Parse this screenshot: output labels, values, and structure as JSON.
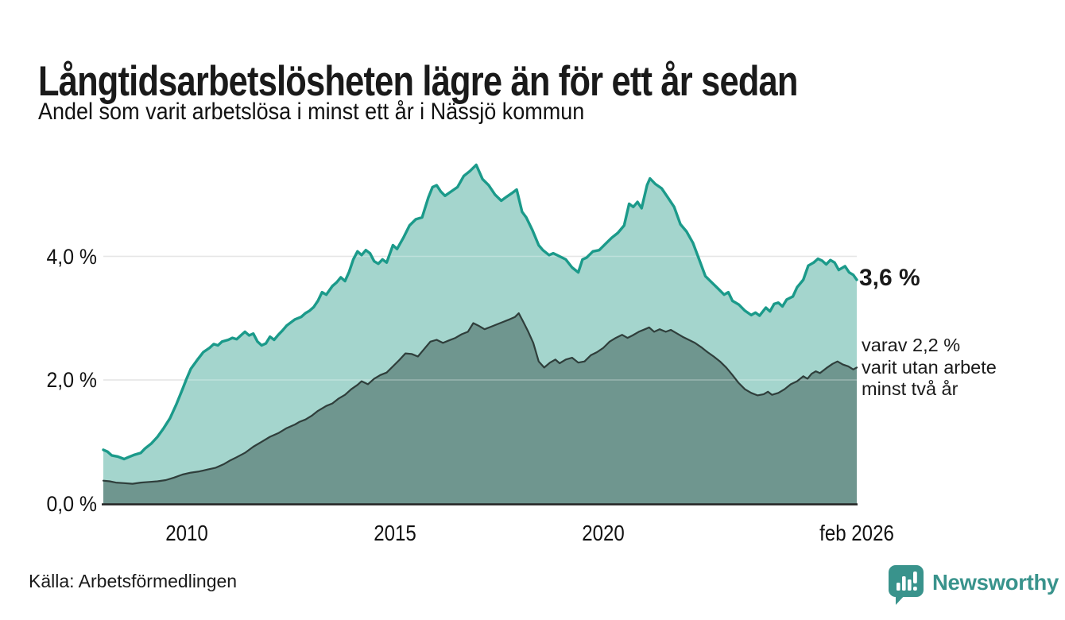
{
  "header": {
    "title": "Långtidsarbetslösheten lägre än för ett år sedan",
    "subtitle": "Andel som varit arbetslösa i minst ett år i Nässjö kommun"
  },
  "footer": {
    "source": "Källa: Arbetsförmedlingen",
    "brand_name": "Newsworthy"
  },
  "chart_data": {
    "type": "area",
    "title": "Långtidsarbetslösheten lägre än för ett år sedan",
    "subtitle": "Andel som varit arbetslösa i minst ett år i Nässjö kommun",
    "unit": "%",
    "x_range": [
      2008.0,
      2026.083
    ],
    "ylim": [
      0,
      5.7
    ],
    "grid": "horizontal",
    "legend_position": "none",
    "x_ticks": [
      {
        "label": "2010",
        "year": 2010
      },
      {
        "label": "2015",
        "year": 2015
      },
      {
        "label": "2020",
        "year": 2020
      },
      {
        "label": "feb 2026",
        "year": 2026.083
      }
    ],
    "y_ticks": [
      {
        "label": "0,0 %",
        "value": 0
      },
      {
        "label": "2,0 %",
        "value": 2
      },
      {
        "label": "4,0 %",
        "value": 4
      }
    ],
    "colors": {
      "line_1yr": "#1b9a8a",
      "fill_1yr": "#a4d5cd",
      "line_2yr": "#2f3e3b",
      "fill_2yr": "#6f968f",
      "gridline": "#dcdcdc",
      "baseline": "#222222",
      "brand_teal": "#39938c"
    },
    "annotations": {
      "end_value_label": "3,6 %",
      "sub_lines": [
        "varav 2,2 %",
        "varit utan arbete",
        "minst två år"
      ]
    },
    "series": [
      {
        "name": "Andel arbetslösa minst ett år",
        "end_value": 3.6,
        "points": [
          [
            2008.0,
            0.87
          ],
          [
            2008.1,
            0.84
          ],
          [
            2008.2,
            0.78
          ],
          [
            2008.35,
            0.76
          ],
          [
            2008.5,
            0.72
          ],
          [
            2008.6,
            0.75
          ],
          [
            2008.75,
            0.79
          ],
          [
            2008.9,
            0.82
          ],
          [
            2009.0,
            0.89
          ],
          [
            2009.15,
            0.97
          ],
          [
            2009.3,
            1.08
          ],
          [
            2009.45,
            1.22
          ],
          [
            2009.6,
            1.38
          ],
          [
            2009.75,
            1.6
          ],
          [
            2009.9,
            1.85
          ],
          [
            2010.0,
            2.02
          ],
          [
            2010.1,
            2.18
          ],
          [
            2010.25,
            2.32
          ],
          [
            2010.4,
            2.45
          ],
          [
            2010.55,
            2.52
          ],
          [
            2010.65,
            2.58
          ],
          [
            2010.75,
            2.56
          ],
          [
            2010.85,
            2.62
          ],
          [
            2011.0,
            2.65
          ],
          [
            2011.1,
            2.68
          ],
          [
            2011.2,
            2.66
          ],
          [
            2011.3,
            2.72
          ],
          [
            2011.4,
            2.78
          ],
          [
            2011.5,
            2.72
          ],
          [
            2011.6,
            2.75
          ],
          [
            2011.7,
            2.62
          ],
          [
            2011.8,
            2.56
          ],
          [
            2011.9,
            2.59
          ],
          [
            2012.0,
            2.7
          ],
          [
            2012.1,
            2.65
          ],
          [
            2012.2,
            2.73
          ],
          [
            2012.3,
            2.8
          ],
          [
            2012.4,
            2.88
          ],
          [
            2012.5,
            2.93
          ],
          [
            2012.6,
            2.98
          ],
          [
            2012.75,
            3.02
          ],
          [
            2012.85,
            3.08
          ],
          [
            2012.95,
            3.12
          ],
          [
            2013.05,
            3.18
          ],
          [
            2013.15,
            3.28
          ],
          [
            2013.25,
            3.42
          ],
          [
            2013.35,
            3.38
          ],
          [
            2013.5,
            3.52
          ],
          [
            2013.6,
            3.58
          ],
          [
            2013.7,
            3.66
          ],
          [
            2013.8,
            3.6
          ],
          [
            2013.9,
            3.75
          ],
          [
            2014.0,
            3.95
          ],
          [
            2014.1,
            4.08
          ],
          [
            2014.2,
            4.02
          ],
          [
            2014.3,
            4.1
          ],
          [
            2014.4,
            4.05
          ],
          [
            2014.5,
            3.92
          ],
          [
            2014.6,
            3.88
          ],
          [
            2014.7,
            3.95
          ],
          [
            2014.8,
            3.9
          ],
          [
            2014.95,
            4.18
          ],
          [
            2015.05,
            4.12
          ],
          [
            2015.2,
            4.3
          ],
          [
            2015.35,
            4.5
          ],
          [
            2015.5,
            4.6
          ],
          [
            2015.65,
            4.63
          ],
          [
            2015.8,
            4.95
          ],
          [
            2015.9,
            5.12
          ],
          [
            2016.0,
            5.15
          ],
          [
            2016.1,
            5.05
          ],
          [
            2016.2,
            4.98
          ],
          [
            2016.35,
            5.05
          ],
          [
            2016.5,
            5.12
          ],
          [
            2016.65,
            5.3
          ],
          [
            2016.8,
            5.38
          ],
          [
            2016.95,
            5.48
          ],
          [
            2017.1,
            5.25
          ],
          [
            2017.25,
            5.15
          ],
          [
            2017.4,
            5.0
          ],
          [
            2017.55,
            4.9
          ],
          [
            2017.65,
            4.95
          ],
          [
            2017.8,
            5.02
          ],
          [
            2017.92,
            5.08
          ],
          [
            2018.05,
            4.72
          ],
          [
            2018.15,
            4.63
          ],
          [
            2018.3,
            4.42
          ],
          [
            2018.45,
            4.18
          ],
          [
            2018.55,
            4.1
          ],
          [
            2018.7,
            4.02
          ],
          [
            2018.8,
            4.05
          ],
          [
            2018.95,
            4.0
          ],
          [
            2019.1,
            3.95
          ],
          [
            2019.25,
            3.82
          ],
          [
            2019.4,
            3.74
          ],
          [
            2019.5,
            3.95
          ],
          [
            2019.6,
            3.98
          ],
          [
            2019.75,
            4.08
          ],
          [
            2019.9,
            4.1
          ],
          [
            2020.05,
            4.2
          ],
          [
            2020.2,
            4.3
          ],
          [
            2020.35,
            4.38
          ],
          [
            2020.5,
            4.5
          ],
          [
            2020.62,
            4.85
          ],
          [
            2020.72,
            4.8
          ],
          [
            2020.82,
            4.88
          ],
          [
            2020.92,
            4.78
          ],
          [
            2021.05,
            5.15
          ],
          [
            2021.12,
            5.26
          ],
          [
            2021.25,
            5.17
          ],
          [
            2021.4,
            5.1
          ],
          [
            2021.55,
            4.95
          ],
          [
            2021.7,
            4.8
          ],
          [
            2021.85,
            4.52
          ],
          [
            2022.0,
            4.4
          ],
          [
            2022.15,
            4.22
          ],
          [
            2022.3,
            3.95
          ],
          [
            2022.45,
            3.68
          ],
          [
            2022.6,
            3.58
          ],
          [
            2022.75,
            3.48
          ],
          [
            2022.9,
            3.38
          ],
          [
            2023.0,
            3.42
          ],
          [
            2023.1,
            3.28
          ],
          [
            2023.25,
            3.22
          ],
          [
            2023.4,
            3.12
          ],
          [
            2023.55,
            3.05
          ],
          [
            2023.65,
            3.09
          ],
          [
            2023.75,
            3.04
          ],
          [
            2023.9,
            3.17
          ],
          [
            2024.0,
            3.11
          ],
          [
            2024.1,
            3.23
          ],
          [
            2024.2,
            3.25
          ],
          [
            2024.3,
            3.19
          ],
          [
            2024.4,
            3.3
          ],
          [
            2024.55,
            3.35
          ],
          [
            2024.65,
            3.5
          ],
          [
            2024.8,
            3.62
          ],
          [
            2024.92,
            3.85
          ],
          [
            2025.05,
            3.9
          ],
          [
            2025.15,
            3.96
          ],
          [
            2025.25,
            3.93
          ],
          [
            2025.35,
            3.87
          ],
          [
            2025.45,
            3.94
          ],
          [
            2025.55,
            3.9
          ],
          [
            2025.65,
            3.78
          ],
          [
            2025.8,
            3.84
          ],
          [
            2025.9,
            3.74
          ],
          [
            2026.0,
            3.7
          ],
          [
            2026.083,
            3.62
          ]
        ]
      },
      {
        "name": "varav utan arbete minst två år",
        "end_value": 2.2,
        "points": [
          [
            2008.0,
            0.37
          ],
          [
            2008.15,
            0.36
          ],
          [
            2008.3,
            0.34
          ],
          [
            2008.5,
            0.33
          ],
          [
            2008.7,
            0.32
          ],
          [
            2008.9,
            0.34
          ],
          [
            2009.1,
            0.35
          ],
          [
            2009.3,
            0.36
          ],
          [
            2009.5,
            0.38
          ],
          [
            2009.7,
            0.42
          ],
          [
            2009.9,
            0.47
          ],
          [
            2010.1,
            0.5
          ],
          [
            2010.3,
            0.52
          ],
          [
            2010.5,
            0.55
          ],
          [
            2010.7,
            0.58
          ],
          [
            2010.9,
            0.64
          ],
          [
            2011.05,
            0.7
          ],
          [
            2011.2,
            0.75
          ],
          [
            2011.4,
            0.82
          ],
          [
            2011.6,
            0.92
          ],
          [
            2011.8,
            1.0
          ],
          [
            2012.0,
            1.08
          ],
          [
            2012.2,
            1.14
          ],
          [
            2012.4,
            1.22
          ],
          [
            2012.6,
            1.28
          ],
          [
            2012.7,
            1.32
          ],
          [
            2012.85,
            1.36
          ],
          [
            2013.0,
            1.42
          ],
          [
            2013.15,
            1.5
          ],
          [
            2013.35,
            1.58
          ],
          [
            2013.5,
            1.62
          ],
          [
            2013.65,
            1.7
          ],
          [
            2013.8,
            1.76
          ],
          [
            2013.95,
            1.85
          ],
          [
            2014.1,
            1.92
          ],
          [
            2014.2,
            1.98
          ],
          [
            2014.35,
            1.93
          ],
          [
            2014.5,
            2.02
          ],
          [
            2014.65,
            2.08
          ],
          [
            2014.8,
            2.12
          ],
          [
            2014.95,
            2.22
          ],
          [
            2015.1,
            2.32
          ],
          [
            2015.25,
            2.43
          ],
          [
            2015.4,
            2.42
          ],
          [
            2015.55,
            2.38
          ],
          [
            2015.7,
            2.5
          ],
          [
            2015.85,
            2.62
          ],
          [
            2016.0,
            2.65
          ],
          [
            2016.15,
            2.6
          ],
          [
            2016.3,
            2.64
          ],
          [
            2016.45,
            2.68
          ],
          [
            2016.6,
            2.74
          ],
          [
            2016.75,
            2.78
          ],
          [
            2016.88,
            2.92
          ],
          [
            2017.0,
            2.88
          ],
          [
            2017.15,
            2.82
          ],
          [
            2017.3,
            2.86
          ],
          [
            2017.45,
            2.9
          ],
          [
            2017.6,
            2.94
          ],
          [
            2017.75,
            2.98
          ],
          [
            2017.88,
            3.02
          ],
          [
            2017.97,
            3.08
          ],
          [
            2018.08,
            2.94
          ],
          [
            2018.2,
            2.78
          ],
          [
            2018.32,
            2.6
          ],
          [
            2018.45,
            2.3
          ],
          [
            2018.58,
            2.2
          ],
          [
            2018.72,
            2.28
          ],
          [
            2018.85,
            2.33
          ],
          [
            2018.95,
            2.27
          ],
          [
            2019.1,
            2.33
          ],
          [
            2019.25,
            2.36
          ],
          [
            2019.4,
            2.28
          ],
          [
            2019.55,
            2.3
          ],
          [
            2019.7,
            2.4
          ],
          [
            2019.85,
            2.45
          ],
          [
            2020.0,
            2.52
          ],
          [
            2020.15,
            2.62
          ],
          [
            2020.3,
            2.68
          ],
          [
            2020.45,
            2.73
          ],
          [
            2020.58,
            2.68
          ],
          [
            2020.7,
            2.72
          ],
          [
            2020.85,
            2.78
          ],
          [
            2021.0,
            2.82
          ],
          [
            2021.1,
            2.85
          ],
          [
            2021.22,
            2.78
          ],
          [
            2021.35,
            2.82
          ],
          [
            2021.5,
            2.78
          ],
          [
            2021.62,
            2.81
          ],
          [
            2021.75,
            2.76
          ],
          [
            2021.9,
            2.7
          ],
          [
            2022.05,
            2.65
          ],
          [
            2022.2,
            2.6
          ],
          [
            2022.35,
            2.53
          ],
          [
            2022.5,
            2.45
          ],
          [
            2022.65,
            2.38
          ],
          [
            2022.8,
            2.3
          ],
          [
            2022.95,
            2.2
          ],
          [
            2023.1,
            2.08
          ],
          [
            2023.25,
            1.95
          ],
          [
            2023.4,
            1.85
          ],
          [
            2023.55,
            1.79
          ],
          [
            2023.7,
            1.75
          ],
          [
            2023.85,
            1.77
          ],
          [
            2023.95,
            1.81
          ],
          [
            2024.05,
            1.76
          ],
          [
            2024.2,
            1.79
          ],
          [
            2024.35,
            1.85
          ],
          [
            2024.5,
            1.93
          ],
          [
            2024.65,
            1.98
          ],
          [
            2024.8,
            2.06
          ],
          [
            2024.9,
            2.02
          ],
          [
            2025.0,
            2.1
          ],
          [
            2025.1,
            2.14
          ],
          [
            2025.2,
            2.11
          ],
          [
            2025.35,
            2.19
          ],
          [
            2025.5,
            2.26
          ],
          [
            2025.62,
            2.3
          ],
          [
            2025.75,
            2.25
          ],
          [
            2025.88,
            2.22
          ],
          [
            2026.0,
            2.17
          ],
          [
            2026.083,
            2.2
          ]
        ]
      }
    ]
  }
}
